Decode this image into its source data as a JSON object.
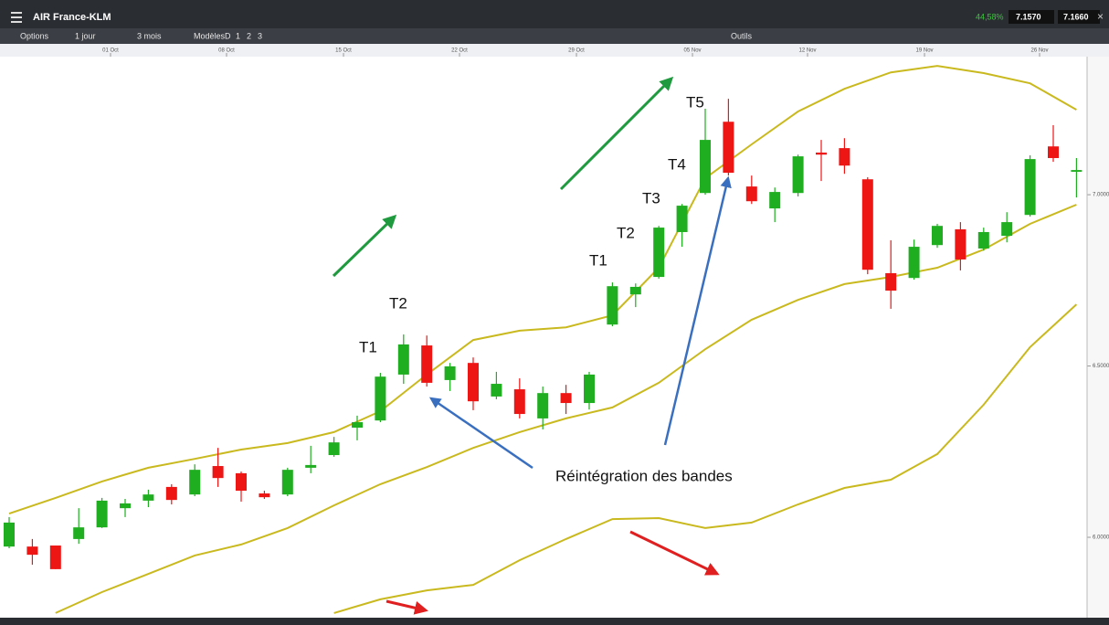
{
  "header": {
    "title": "AIR France-KLM",
    "change": "44,58%",
    "bid": "7.1570",
    "ask": "7.1660"
  },
  "toolbar": {
    "items": [
      "Options",
      "1 jour",
      "3 mois",
      "Modèles",
      "D",
      "1",
      "2",
      "3"
    ],
    "tools": "Outils"
  },
  "chart_data": {
    "type": "candlestick",
    "xlim": [
      -0.394,
      46.457
    ],
    "xticks": [
      {
        "value": 4.37,
        "label": "01 Oct"
      },
      {
        "value": 9.37,
        "label": "08 Oct"
      },
      {
        "value": 14.41,
        "label": "15 Oct"
      },
      {
        "value": 19.41,
        "label": "22 Oct"
      },
      {
        "value": 24.45,
        "label": "29 Oct"
      },
      {
        "value": 29.45,
        "label": "05 Nov"
      },
      {
        "value": 34.41,
        "label": "12 Nov"
      },
      {
        "value": 39.45,
        "label": "19 Nov"
      },
      {
        "value": 44.41,
        "label": "26 Nov"
      }
    ],
    "ylim": [
      5.776,
      7.403
    ],
    "yticks": [
      {
        "value": 7.0,
        "label": "7.0000"
      },
      {
        "value": 6.5,
        "label": "6.5000"
      },
      {
        "value": 6.0,
        "label": "6.0000"
      }
    ],
    "up_color": "#1fae1f",
    "down_color": "#ee1515",
    "open": [
      5.973,
      5.973,
      5.976,
      5.995,
      6.029,
      6.085,
      6.107,
      6.147,
      6.125,
      6.208,
      6.187,
      6.128,
      6.125,
      6.203,
      6.24,
      6.32,
      6.341,
      6.475,
      6.56,
      6.459,
      6.509,
      6.411,
      6.432,
      6.347,
      6.421,
      6.392,
      6.621,
      6.709,
      6.76,
      6.891,
      7.005,
      7.213,
      7.024,
      6.96,
      7.005,
      7.123,
      7.136,
      7.045,
      6.771,
      6.757,
      6.853,
      6.899,
      6.843,
      6.88,
      6.941,
      7.141,
      7.067
    ],
    "high": [
      6.059,
      5.995,
      5.976,
      6.085,
      6.115,
      6.112,
      6.139,
      6.155,
      6.213,
      6.261,
      6.192,
      6.136,
      6.203,
      6.267,
      6.293,
      6.355,
      6.48,
      6.592,
      6.589,
      6.509,
      6.525,
      6.483,
      6.464,
      6.44,
      6.445,
      6.483,
      6.744,
      6.741,
      6.909,
      6.973,
      7.251,
      7.28,
      7.056,
      7.021,
      7.117,
      7.16,
      7.165,
      7.051,
      6.867,
      6.869,
      6.915,
      6.92,
      6.904,
      6.949,
      7.115,
      7.203,
      7.107
    ],
    "low": [
      5.968,
      5.92,
      5.907,
      5.981,
      6.027,
      6.059,
      6.088,
      6.096,
      6.12,
      6.147,
      6.104,
      6.112,
      6.12,
      6.187,
      6.235,
      6.283,
      6.336,
      6.448,
      6.44,
      6.427,
      6.371,
      6.403,
      6.347,
      6.315,
      6.36,
      6.373,
      6.616,
      6.672,
      6.755,
      6.848,
      7.0,
      7.056,
      6.973,
      6.92,
      6.995,
      7.04,
      7.061,
      6.768,
      6.667,
      6.752,
      6.845,
      6.779,
      6.837,
      6.861,
      6.936,
      7.096,
      6.992
    ],
    "close": [
      6.043,
      5.949,
      5.907,
      6.029,
      6.107,
      6.099,
      6.125,
      6.109,
      6.197,
      6.173,
      6.136,
      6.117,
      6.197,
      6.211,
      6.277,
      6.336,
      6.469,
      6.563,
      6.451,
      6.499,
      6.397,
      6.448,
      6.36,
      6.421,
      6.392,
      6.475,
      6.733,
      6.731,
      6.904,
      6.968,
      7.16,
      7.064,
      6.981,
      7.008,
      7.112,
      7.117,
      7.085,
      6.781,
      6.72,
      6.848,
      6.909,
      6.811,
      6.891,
      6.92,
      7.104,
      7.107,
      7.072
    ],
    "band_color": "#c9b91e",
    "band_x": [
      0,
      2,
      4,
      6,
      8,
      10,
      12,
      14,
      16,
      18,
      20,
      22,
      24,
      26,
      28,
      30,
      32,
      34,
      36,
      38,
      40,
      42,
      44,
      46
    ],
    "bands": [
      {
        "values": [
          6.069,
          6.115,
          6.163,
          6.203,
          6.229,
          6.256,
          6.275,
          6.307,
          6.368,
          6.475,
          6.576,
          6.603,
          6.613,
          6.648,
          6.787,
          7.048,
          7.147,
          7.243,
          7.309,
          7.357,
          7.376,
          7.355,
          7.325,
          7.248
        ]
      },
      {
        "values": [
          null,
          5.779,
          5.84,
          5.893,
          5.947,
          5.979,
          6.027,
          6.093,
          6.155,
          6.205,
          6.261,
          6.307,
          6.347,
          6.379,
          6.451,
          6.549,
          6.635,
          6.693,
          6.739,
          6.76,
          6.787,
          6.84,
          6.915,
          6.971
        ]
      },
      {
        "values": [
          null,
          null,
          null,
          null,
          null,
          null,
          null,
          5.779,
          5.819,
          5.845,
          5.861,
          5.933,
          5.995,
          6.053,
          6.056,
          6.027,
          6.043,
          6.096,
          6.144,
          6.168,
          6.243,
          6.387,
          6.555,
          6.68
        ]
      }
    ],
    "annotations": [
      "T1",
      "T2",
      "T1",
      "T2",
      "T3",
      "T4",
      "T5",
      "Réintégration des bandes"
    ]
  }
}
